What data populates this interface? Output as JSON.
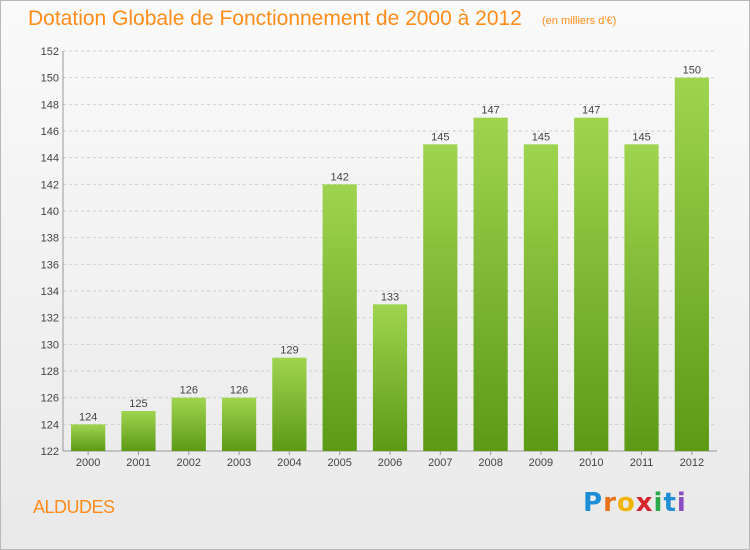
{
  "header": {
    "title": "Dotation Globale de Fonctionnement de 2000 à 2012",
    "subtitle": "(en milliers d'€)"
  },
  "footer": {
    "commune": "ALDUDES",
    "logo": {
      "letters": [
        "P",
        "r",
        "o",
        "x",
        "i",
        "t",
        "i"
      ],
      "colors": [
        "#1e8fd6",
        "#e8731a",
        "#f0b400",
        "#d6262e",
        "#2aa84a",
        "#1e8fd6",
        "#8a4dbf"
      ]
    }
  },
  "colors": {
    "bar_top": "#9fd450",
    "bar_bottom": "#5c9a16",
    "grid": "#cfcfcf",
    "title": "#ff8c1a"
  },
  "chart_data": {
    "type": "bar",
    "title": "Dotation Globale de Fonctionnement de 2000 à 2012",
    "subtitle": "(en milliers d'€)",
    "categories": [
      "2000",
      "2001",
      "2002",
      "2003",
      "2004",
      "2005",
      "2006",
      "2007",
      "2008",
      "2009",
      "2010",
      "2011",
      "2012"
    ],
    "values": [
      124,
      125,
      126,
      126,
      129,
      142,
      133,
      145,
      147,
      145,
      147,
      145,
      150
    ],
    "ylim": [
      122,
      152
    ],
    "yticks": [
      122,
      124,
      126,
      128,
      130,
      132,
      134,
      136,
      138,
      140,
      142,
      144,
      146,
      148,
      150,
      152
    ],
    "grid": true,
    "data_labels": true
  }
}
